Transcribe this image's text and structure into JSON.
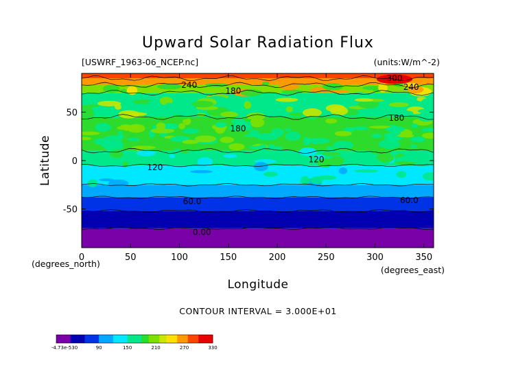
{
  "chart_data": {
    "type": "heatmap",
    "title": "Upward Solar Radiation Flux",
    "file_label": "[USWRF_1963-06_NCEP.nc]",
    "units_label": "(units:W/m^-2)",
    "xlabel": "Longitude",
    "ylabel": "Latitude",
    "x_unit_label": "(degrees_east)",
    "y_unit_label": "(degrees_north)",
    "xlim": [
      0,
      360
    ],
    "ylim": [
      -90,
      90
    ],
    "x_ticks": [
      0,
      50,
      100,
      150,
      200,
      250,
      300,
      350
    ],
    "y_ticks": [
      -50,
      0,
      50
    ],
    "contour_interval_text": "CONTOUR INTERVAL = 3.000E+01",
    "zonal_bands": [
      {
        "lat_range": [
          -90,
          -70
        ],
        "value": 0
      },
      {
        "lat_range": [
          -70,
          -52
        ],
        "value": 30
      },
      {
        "lat_range": [
          -52,
          -38
        ],
        "value": 60
      },
      {
        "lat_range": [
          -38,
          -25
        ],
        "value": 90
      },
      {
        "lat_range": [
          -25,
          -5
        ],
        "value": 120
      },
      {
        "lat_range": [
          -5,
          10
        ],
        "value": 150
      },
      {
        "lat_range": [
          10,
          45
        ],
        "value": 180
      },
      {
        "lat_range": [
          45,
          70
        ],
        "value": 165
      },
      {
        "lat_range": [
          70,
          78
        ],
        "value": 210
      },
      {
        "lat_range": [
          78,
          85
        ],
        "value": 255
      },
      {
        "lat_range": [
          85,
          90
        ],
        "value": 280
      }
    ],
    "contour_labels": [
      {
        "text": "240",
        "lon": 110,
        "lat": 78
      },
      {
        "text": "180",
        "lon": 155,
        "lat": 72
      },
      {
        "text": "180",
        "lon": 160,
        "lat": 33
      },
      {
        "text": "180",
        "lon": 322,
        "lat": 44
      },
      {
        "text": "300",
        "lon": 320,
        "lat": 85
      },
      {
        "text": "240",
        "lon": 337,
        "lat": 76
      },
      {
        "text": "120",
        "lon": 75,
        "lat": -7
      },
      {
        "text": "120",
        "lon": 240,
        "lat": 1
      },
      {
        "text": "60.0",
        "lon": 113,
        "lat": -42
      },
      {
        "text": "60.0",
        "lon": 335,
        "lat": -41
      },
      {
        "text": "0.00",
        "lon": 123,
        "lat": -74
      }
    ],
    "colorbar": {
      "tick_labels": [
        "-4.73e-530",
        "90",
        "150",
        "210",
        "270",
        "330"
      ],
      "min": 0,
      "max": 330
    },
    "palette": {
      "purple": "#7a00a8",
      "dark_blue": "#0000b0",
      "blue": "#0033e6",
      "sky_blue": "#00a8ff",
      "cyan": "#00e8ff",
      "teal_green": "#00e88a",
      "green": "#2ddb2d",
      "bright_green": "#7fe000",
      "yellow_green": "#c8e600",
      "yellow": "#ffe000",
      "orange": "#ff9900",
      "red_orange": "#ff4400",
      "red": "#e80000",
      "pink": "#ff9ec0"
    }
  }
}
